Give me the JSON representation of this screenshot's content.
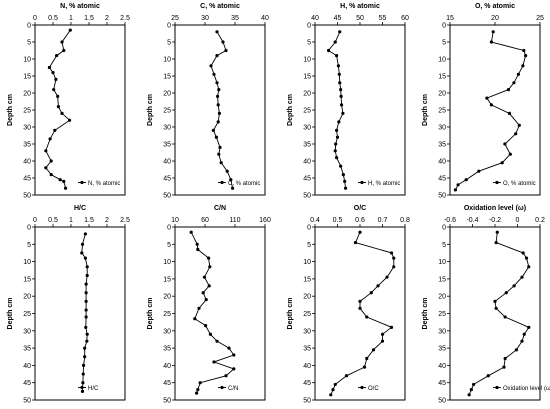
{
  "figure": {
    "background": "#ffffff",
    "line_color": "#000000"
  },
  "chart_data": [
    {
      "type": "line",
      "title": "N, % atomic",
      "xlim": [
        0,
        2.5
      ],
      "xticks": [
        "0",
        "0.5",
        "1",
        "1.5",
        "2",
        "2.5"
      ],
      "ylabel": "Depth cm",
      "ylim": [
        0,
        50
      ],
      "yticks": [
        0,
        5,
        10,
        15,
        20,
        25,
        30,
        35,
        40,
        45,
        50
      ],
      "legend": {
        "label": "N, % atomic",
        "position": "bottom-right"
      },
      "series": [
        {
          "name": "N, % atomic",
          "x": [
            0.98,
            0.75,
            0.8,
            0.6,
            0.4,
            0.5,
            0.58,
            0.52,
            0.63,
            0.65,
            0.75,
            0.96,
            0.55,
            0.42,
            0.3,
            0.45,
            0.3,
            0.45,
            0.7,
            0.8,
            0.85
          ],
          "y": [
            1.5,
            5,
            7.5,
            9,
            12.5,
            14,
            16,
            19,
            21,
            24,
            26,
            28,
            31,
            33.5,
            37,
            40,
            42,
            44,
            45.5,
            46,
            48
          ]
        }
      ]
    },
    {
      "type": "line",
      "title": "C, % atomic",
      "xlim": [
        25,
        40
      ],
      "xticks": [
        "25",
        "30",
        "35",
        "40"
      ],
      "ylabel": "Depth cm",
      "ylim": [
        0,
        50
      ],
      "yticks": [
        0,
        5,
        10,
        15,
        20,
        25,
        30,
        35,
        40,
        45,
        50
      ],
      "legend": {
        "label": "C, % atomic",
        "position": "bottom-right"
      },
      "series": [
        {
          "name": "C, % atomic",
          "x": [
            32,
            33,
            33.5,
            32,
            31,
            31.5,
            32,
            32.3,
            32.1,
            32.2,
            32.4,
            32.2,
            31.4,
            31.9,
            32.5,
            32.3,
            32.7,
            33.7,
            34.3,
            34.6
          ],
          "y": [
            2,
            5,
            7.5,
            9,
            12,
            14.5,
            17,
            19,
            21,
            23.5,
            26,
            28.5,
            31,
            33,
            36,
            38,
            40.5,
            43,
            45.5,
            48
          ]
        }
      ]
    },
    {
      "type": "line",
      "title": "H, % atomic",
      "xlim": [
        40,
        60
      ],
      "xticks": [
        "40",
        "45",
        "50",
        "55",
        "60"
      ],
      "ylabel": "Depth cm",
      "ylim": [
        0,
        50
      ],
      "yticks": [
        0,
        5,
        10,
        15,
        20,
        25,
        30,
        35,
        40,
        45,
        50
      ],
      "legend": {
        "label": "H, % atomic",
        "position": "bottom-right"
      },
      "series": [
        {
          "name": "H, % atomic",
          "x": [
            45.5,
            44.5,
            43,
            44.8,
            45.2,
            45.4,
            45.5,
            45.7,
            45.8,
            45.9,
            46.2,
            45.3,
            44.8,
            45,
            44.6,
            44.5,
            44.8,
            45.7,
            46.3,
            46.6,
            46.8
          ],
          "y": [
            2,
            5,
            7.5,
            9,
            12,
            14.5,
            17,
            19,
            21,
            23.5,
            26,
            28.5,
            31,
            33,
            35,
            37,
            39,
            41.5,
            44,
            46,
            48
          ]
        }
      ]
    },
    {
      "type": "line",
      "title": "O, % atomic",
      "xlim": [
        15,
        25
      ],
      "xticks": [
        "15",
        "20",
        "25"
      ],
      "ylabel": "Depth cm",
      "ylim": [
        0,
        50
      ],
      "yticks": [
        0,
        5,
        10,
        15,
        20,
        25,
        30,
        35,
        40,
        45,
        50
      ],
      "legend": {
        "label": "O, % atomic",
        "position": "bottom-right"
      },
      "series": [
        {
          "name": "O, % atomic",
          "x": [
            19.8,
            19.6,
            23.2,
            23.4,
            23.1,
            22.6,
            22.1,
            21.5,
            19.1,
            19.6,
            21.6,
            22.7,
            22.3,
            21.1,
            21.7,
            20.8,
            18.2,
            16.8,
            15.9,
            15.6
          ],
          "y": [
            2,
            5,
            7.5,
            9,
            12,
            14.5,
            17,
            19,
            21.5,
            23.5,
            26,
            29.5,
            32,
            35,
            38,
            40.5,
            43,
            45.5,
            47,
            48.5
          ]
        }
      ]
    },
    {
      "type": "line",
      "title": "H/C",
      "xlim": [
        0,
        2.5
      ],
      "xticks": [
        "0",
        "0.5",
        "1",
        "1.5",
        "2",
        "2.5"
      ],
      "ylabel": "Depth cm",
      "ylim": [
        0,
        50
      ],
      "yticks": [
        0,
        5,
        10,
        15,
        20,
        25,
        30,
        35,
        40,
        45,
        50
      ],
      "legend": {
        "label": "H/C",
        "position": "bottom-right"
      },
      "series": [
        {
          "name": "H/C",
          "x": [
            1.4,
            1.32,
            1.3,
            1.4,
            1.45,
            1.45,
            1.42,
            1.42,
            1.42,
            1.42,
            1.42,
            1.41,
            1.45,
            1.44,
            1.38,
            1.38,
            1.35,
            1.34,
            1.33,
            1.32
          ],
          "y": [
            2,
            5,
            7.5,
            9,
            11.5,
            14,
            16.5,
            19,
            21.5,
            24,
            26,
            29,
            31,
            33,
            35,
            37.5,
            40,
            42.5,
            45,
            47.5
          ]
        }
      ]
    },
    {
      "type": "line",
      "title": "C/N",
      "xlim": [
        10,
        160
      ],
      "xticks": [
        "10",
        "60",
        "110",
        "160"
      ],
      "ylabel": "Depth cm",
      "ylim": [
        0,
        50
      ],
      "yticks": [
        0,
        5,
        10,
        15,
        20,
        25,
        30,
        35,
        40,
        45,
        50
      ],
      "legend": {
        "label": "C/N",
        "position": "bottom-right"
      },
      "series": [
        {
          "name": "C/N",
          "x": [
            37,
            47,
            48,
            66,
            68,
            59,
            67,
            57,
            62,
            50,
            43,
            61,
            69,
            80,
            100,
            108,
            75,
            108,
            95,
            52,
            48,
            46
          ],
          "y": [
            1.5,
            5,
            6.5,
            9,
            11.5,
            14.5,
            17,
            19,
            21,
            23.5,
            26.5,
            28.5,
            31,
            33,
            35,
            37,
            39,
            41,
            43,
            45,
            47,
            48
          ]
        }
      ]
    },
    {
      "type": "line",
      "title": "O/C",
      "xlim": [
        0.4,
        0.8
      ],
      "xticks": [
        "0.4",
        "0.5",
        "0.6",
        "0.7",
        "0.8"
      ],
      "ylabel": "Depth cm",
      "ylim": [
        0,
        50
      ],
      "yticks": [
        0,
        5,
        10,
        15,
        20,
        25,
        30,
        35,
        40,
        45,
        50
      ],
      "legend": {
        "label": "O/C",
        "position": "bottom-right"
      },
      "series": [
        {
          "name": "O/C",
          "x": [
            0.6,
            0.58,
            0.74,
            0.75,
            0.75,
            0.72,
            0.68,
            0.65,
            0.6,
            0.6,
            0.63,
            0.74,
            0.7,
            0.7,
            0.66,
            0.63,
            0.62,
            0.54,
            0.49,
            0.48,
            0.47
          ],
          "y": [
            1.5,
            4.5,
            7.5,
            9,
            11.5,
            14.5,
            17,
            19,
            21.5,
            23.5,
            26,
            29,
            31,
            33,
            35.5,
            38,
            40.5,
            43,
            45.5,
            47,
            48.5
          ]
        }
      ]
    },
    {
      "type": "line",
      "title": "Oxidation level (ω)",
      "xlim": [
        -0.6,
        0.2
      ],
      "xticks": [
        "-0.6",
        "-0.4",
        "-0.2",
        "0",
        "0.2"
      ],
      "ylabel": "Depth cm",
      "ylim": [
        0,
        50
      ],
      "yticks": [
        0,
        5,
        10,
        15,
        20,
        25,
        30,
        35,
        40,
        45,
        50
      ],
      "legend": {
        "label": "Oxidation level (ω)",
        "position": "bottom-right"
      },
      "series": [
        {
          "name": "Oxidation level (ω)",
          "x": [
            -0.18,
            -0.19,
            0.05,
            0.08,
            0.1,
            0.04,
            -0.03,
            -0.1,
            -0.2,
            -0.19,
            -0.11,
            0.1,
            0.06,
            0.04,
            -0.01,
            -0.11,
            -0.12,
            -0.26,
            -0.39,
            -0.41,
            -0.43
          ],
          "y": [
            1.5,
            4.5,
            7.5,
            9,
            11.5,
            14.5,
            17,
            19,
            21.5,
            23.5,
            26,
            29,
            31,
            33,
            35.5,
            38,
            40.5,
            43,
            45.5,
            47,
            48.5
          ]
        }
      ]
    }
  ]
}
